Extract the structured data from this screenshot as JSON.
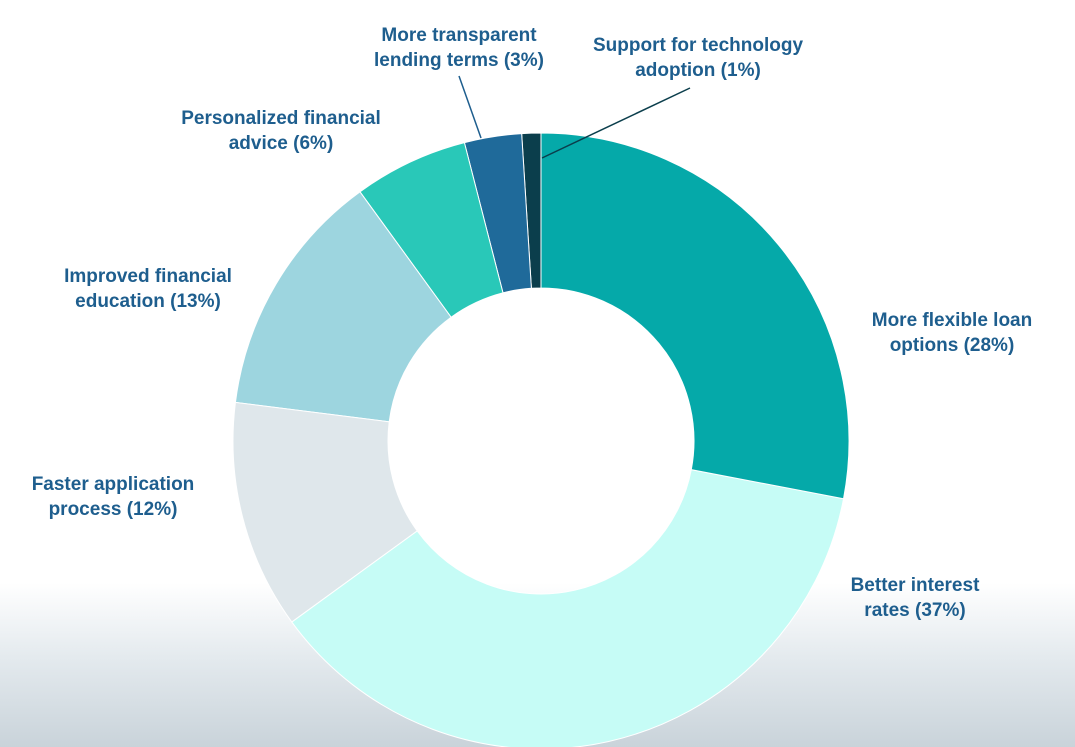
{
  "chart_data": {
    "type": "donut",
    "categories": [
      "More flexible loan options",
      "Better interest rates",
      "Faster application process",
      "Improved financial education",
      "Personalized financial advice",
      "More transparent lending terms",
      "Support for technology adoption"
    ],
    "values": [
      28,
      37,
      12,
      13,
      6,
      3,
      1
    ],
    "value_labels": [
      "(28%)",
      "(37%)",
      "(12%)",
      "(13%)",
      "(6%)",
      "(3%)",
      "(1%)"
    ],
    "colors": [
      "#05a9a9",
      "#c6fcf6",
      "#dfe7eb",
      "#9dd5df",
      "#29c8b8",
      "#1f6a9a",
      "#0b3e4c"
    ]
  }
}
